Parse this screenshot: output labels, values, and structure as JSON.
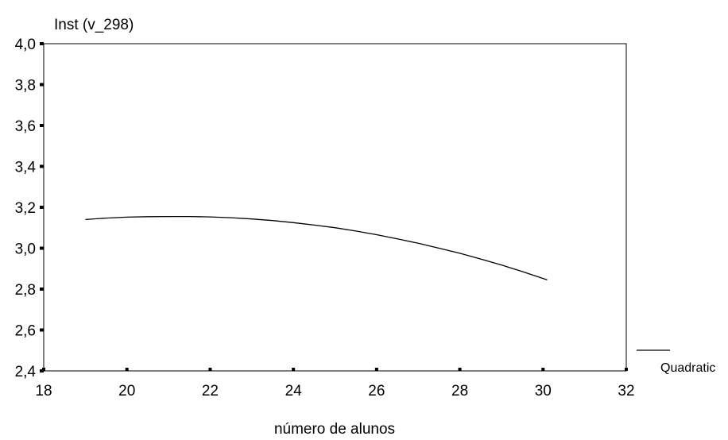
{
  "chart_data": {
    "type": "line",
    "title": "",
    "ylabel": "Inst (v_298)",
    "xlabel": "número de alunos",
    "xlim": [
      18,
      32
    ],
    "ylim": [
      2.4,
      4.0
    ],
    "x_ticks": [
      18,
      20,
      22,
      24,
      26,
      28,
      30,
      32
    ],
    "y_ticks": [
      2.4,
      2.6,
      2.8,
      3.0,
      3.2,
      3.4,
      3.6,
      3.8,
      4.0
    ],
    "x_tick_labels": [
      "18",
      "20",
      "22",
      "24",
      "26",
      "28",
      "30",
      "32"
    ],
    "y_tick_labels": [
      "2,4",
      "2,6",
      "2,8",
      "3,0",
      "3,2",
      "3,4",
      "3,6",
      "3,8",
      "4,0"
    ],
    "legend": {
      "placement": "bottom-right",
      "entries": [
        "Quadratic"
      ]
    },
    "grid": false,
    "series": [
      {
        "name": "Quadratic",
        "x": [
          19.0,
          19.5,
          20.0,
          20.5,
          21.0,
          21.5,
          22.0,
          22.5,
          23.0,
          23.5,
          24.0,
          24.5,
          25.0,
          25.5,
          26.0,
          26.5,
          27.0,
          27.5,
          28.0,
          28.5,
          29.0,
          29.5,
          30.0,
          30.1
        ],
        "y": [
          3.14,
          3.147,
          3.152,
          3.154,
          3.155,
          3.155,
          3.153,
          3.149,
          3.143,
          3.135,
          3.125,
          3.113,
          3.1,
          3.084,
          3.066,
          3.046,
          3.024,
          3.0,
          2.975,
          2.947,
          2.918,
          2.886,
          2.852,
          2.845
        ]
      }
    ]
  }
}
